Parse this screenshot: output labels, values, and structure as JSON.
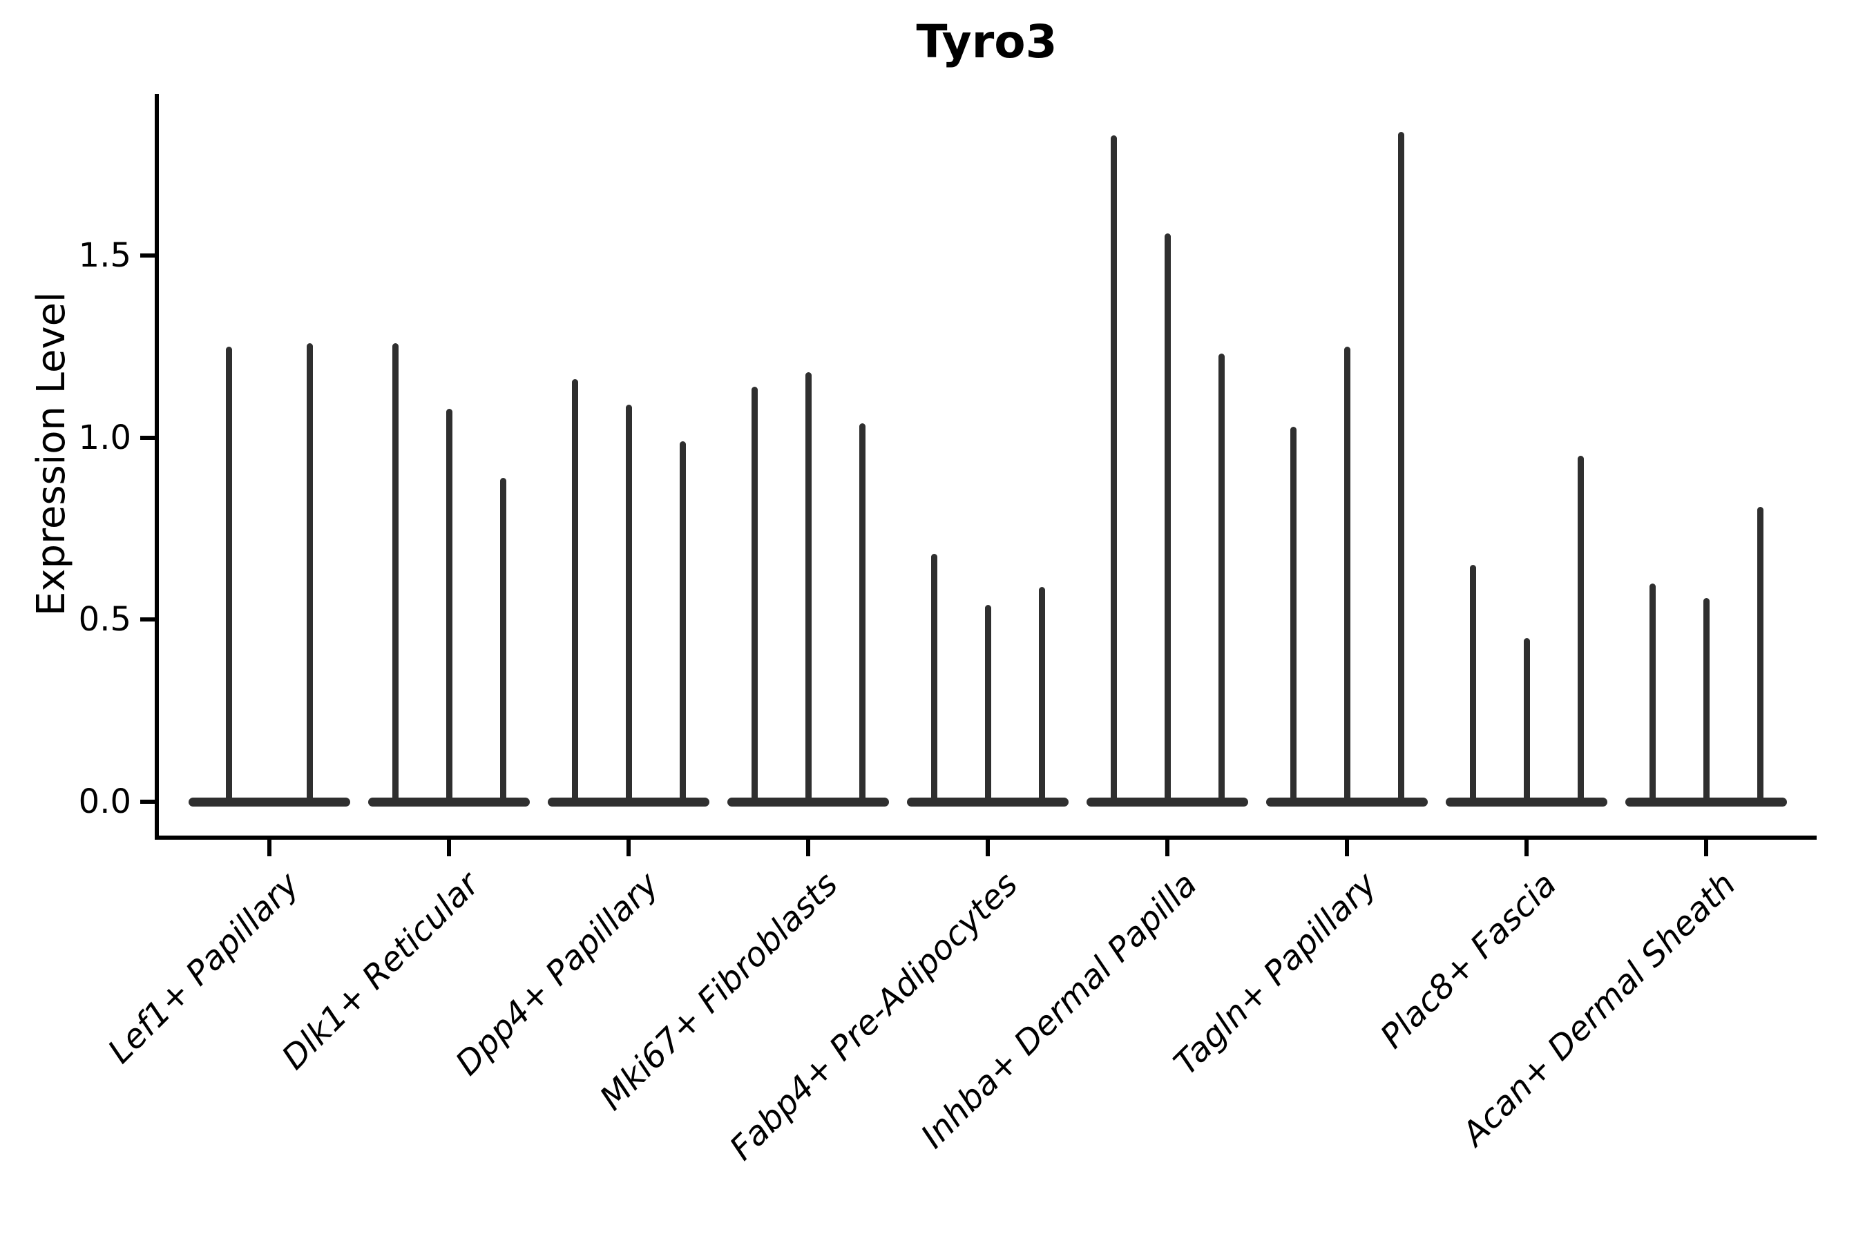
{
  "figure": {
    "title": "Tyro3",
    "ylabel": "Expression Level"
  },
  "chart_data": {
    "type": "violin",
    "title": "Tyro3",
    "xlabel": "",
    "ylabel": "Expression Level",
    "ylim": [
      -0.09,
      1.94
    ],
    "grid": false,
    "legend": "none",
    "yticks": [
      {
        "value": 0.0,
        "label": "0.0"
      },
      {
        "value": 0.5,
        "label": "0.5"
      },
      {
        "value": 1.0,
        "label": "1.0"
      },
      {
        "value": 1.5,
        "label": "1.5"
      }
    ],
    "categories": [
      "Lef1+ Papillary",
      "Dlk1+ Reticular",
      "Dpp4+ Papillary",
      "Mki67+ Fibroblasts",
      "Fabp4+ Pre-Adipocytes",
      "Inhba+ Dermal Papilla",
      "Tagln+ Papillary",
      "Plac8+ Fascia",
      "Acan+ Dermal Sheath"
    ],
    "series": [
      {
        "category": "Lef1+ Papillary",
        "violin_max_values": [
          1.25,
          1.26
        ]
      },
      {
        "category": "Dlk1+ Reticular",
        "violin_max_values": [
          1.26,
          1.08,
          0.89
        ]
      },
      {
        "category": "Dpp4+ Papillary",
        "violin_max_values": [
          1.16,
          1.09,
          0.99
        ]
      },
      {
        "category": "Mki67+ Fibroblasts",
        "violin_max_values": [
          1.14,
          1.18,
          1.04
        ]
      },
      {
        "category": "Fabp4+ Pre-Adipocytes",
        "violin_max_values": [
          0.68,
          0.54,
          0.59
        ]
      },
      {
        "category": "Inhba+ Dermal Papilla",
        "violin_max_values": [
          1.83,
          1.56,
          1.23
        ]
      },
      {
        "category": "Tagln+ Papillary",
        "violin_max_values": [
          1.03,
          1.25,
          1.84
        ]
      },
      {
        "category": "Plac8+ Fascia",
        "violin_max_values": [
          0.65,
          0.45,
          0.95
        ]
      },
      {
        "category": "Acan+ Dermal Sheath",
        "violin_max_values": [
          0.6,
          0.56,
          0.81
        ]
      }
    ],
    "violin_style": {
      "shape": "needle",
      "baseline_value": 0.0
    },
    "colors": {
      "axis": "#000000",
      "violin": "#2f2f2f",
      "background": "#ffffff"
    }
  }
}
